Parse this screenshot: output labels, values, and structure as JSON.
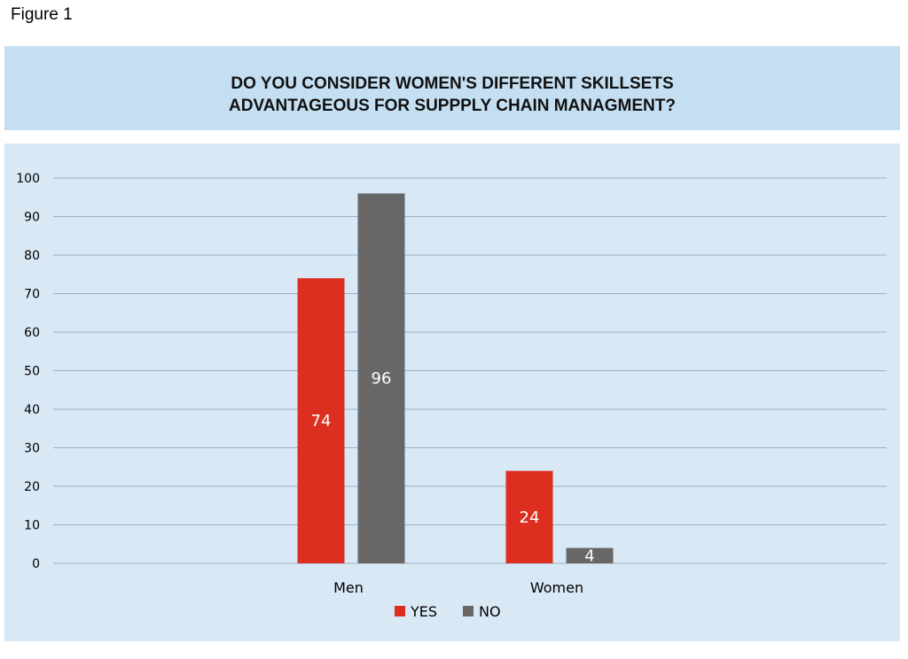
{
  "figure_label": "Figure 1",
  "colors": {
    "title_background": "#c5dff2",
    "plot_background": "#d9e8f5",
    "yes": "#dc2f1f",
    "no": "#676767",
    "gridline": "#9db0c2"
  },
  "chart_data": {
    "type": "bar",
    "title_lines": [
      "DO YOU CONSIDER WOMEN'S DIFFERENT SKILLSETS",
      "ADVANTAGEOUS FOR SUPPPLY CHAIN MANAGMENT?"
    ],
    "categories": [
      "Men",
      "Women"
    ],
    "series": [
      {
        "name": "YES",
        "values": [
          74,
          24
        ],
        "color": "#dc2f1f"
      },
      {
        "name": "NO",
        "values": [
          96,
          4
        ],
        "color": "#676767"
      }
    ],
    "ylim": [
      0,
      100
    ],
    "yticks": [
      0,
      10,
      20,
      30,
      40,
      50,
      60,
      70,
      80,
      90,
      100
    ],
    "grid": true,
    "legend_position": "bottom",
    "data_labels": true
  }
}
